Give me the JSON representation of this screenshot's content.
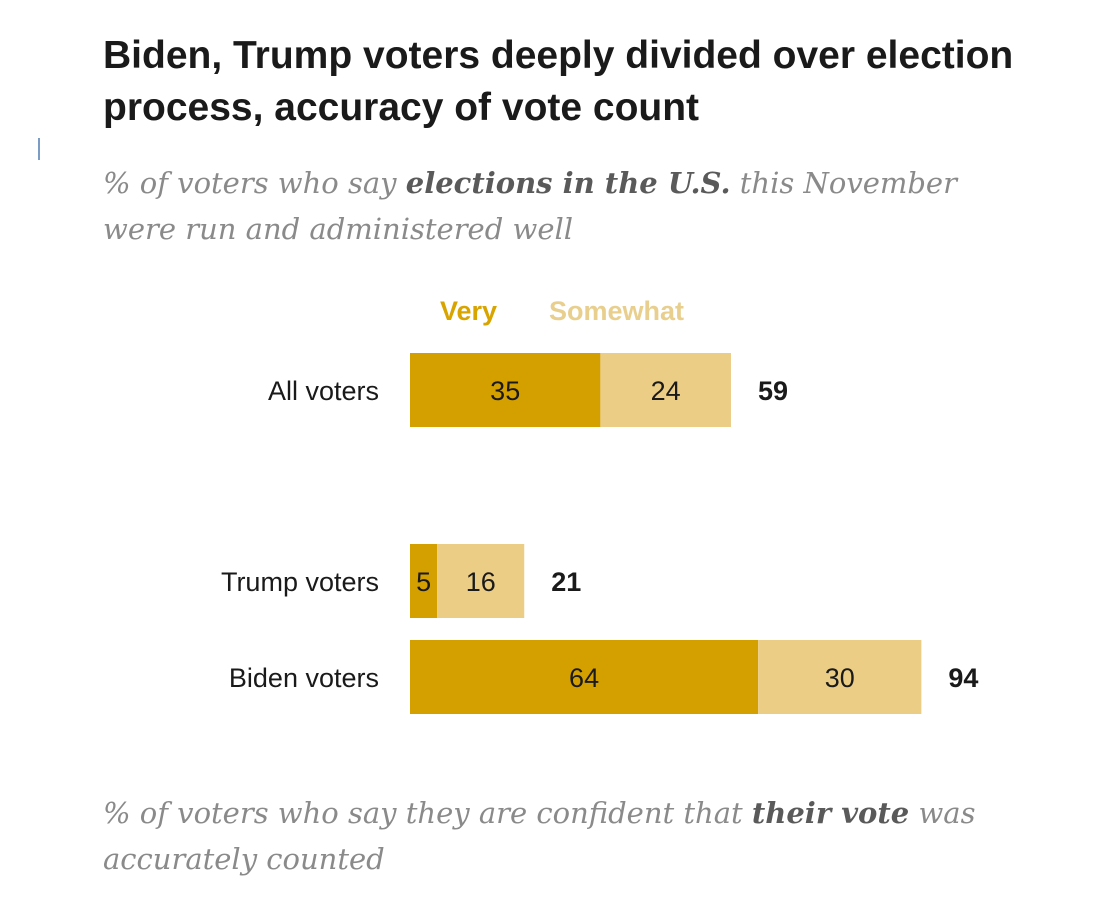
{
  "title": "Biden, Trump voters deeply divided over election process, accuracy of vote count",
  "subtitle": {
    "pre": "% of voters who say ",
    "bold": "elections in the U.S.",
    "post": " this November were run and administered well"
  },
  "footer_note": {
    "pre": "% of voters who say they are confident that ",
    "bold": "their vote",
    "post": " was accurately counted"
  },
  "colors": {
    "very": "#d4a000",
    "somewhat": "#ebcd85",
    "very_label": "#d8a400",
    "somewhat_label": "#e8cf8e",
    "text": "#1a1a1a"
  },
  "chart_data": {
    "type": "bar",
    "orientation": "horizontal",
    "stacked": true,
    "legend_position": "top",
    "categories": [
      "All voters",
      "Trump voters",
      "Biden voters"
    ],
    "series": [
      {
        "name": "Very",
        "values": [
          35,
          5,
          64
        ]
      },
      {
        "name": "Somewhat",
        "values": [
          24,
          16,
          30
        ]
      }
    ],
    "totals": [
      59,
      21,
      94
    ],
    "xlim": [
      0,
      100
    ],
    "grid": false
  }
}
